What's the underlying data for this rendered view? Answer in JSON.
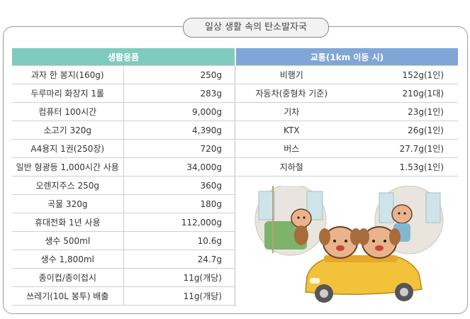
{
  "title": "일상 생활 속의 탄소발자국",
  "left_table": {
    "header": "생활용품",
    "rows": [
      {
        "item": "과자 한 봉지(160g)",
        "value": "250g"
      },
      {
        "item": "두루마리 화장지 1롤",
        "value": "283g"
      },
      {
        "item": "컴퓨터 100시간",
        "value": "9,000g"
      },
      {
        "item": "소고기 320g",
        "value": "4,390g"
      },
      {
        "item": "A4용지 1권(250장)",
        "value": "720g"
      },
      {
        "item": "일반 형광등 1,000시간 사용",
        "value": "34,000g"
      },
      {
        "item": "오렌지주스 250g",
        "value": "360g"
      },
      {
        "item": "곡물 320g",
        "value": "180g"
      },
      {
        "item": "휴대전화 1년 사용",
        "value": "112,000g"
      },
      {
        "item": "생수 500ml",
        "value": "10.6g"
      },
      {
        "item": "생수 1,800ml",
        "value": "24.7g"
      },
      {
        "item": "종이컵/종이접시",
        "value": "11g(개당)"
      },
      {
        "item": "쓰레기(10L 봉투) 배출",
        "value": "11g(개당)"
      }
    ]
  },
  "right_table": {
    "header": "교통(1km 이동 시)",
    "rows": [
      {
        "item": "비행기",
        "value": "152g(1인)"
      },
      {
        "item": "자동차(중형차 기준)",
        "value": "210g(1대)"
      },
      {
        "item": "기차",
        "value": "23g(1인)"
      },
      {
        "item": "KTX",
        "value": "26g(1인)"
      },
      {
        "item": "버스",
        "value": "27.7g(1인)"
      },
      {
        "item": "지하철",
        "value": "1.53g(1인)"
      }
    ]
  },
  "colors": {
    "left_header": "#7fcbbd",
    "right_header": "#7fa6d6",
    "car": "#f2c23a"
  }
}
